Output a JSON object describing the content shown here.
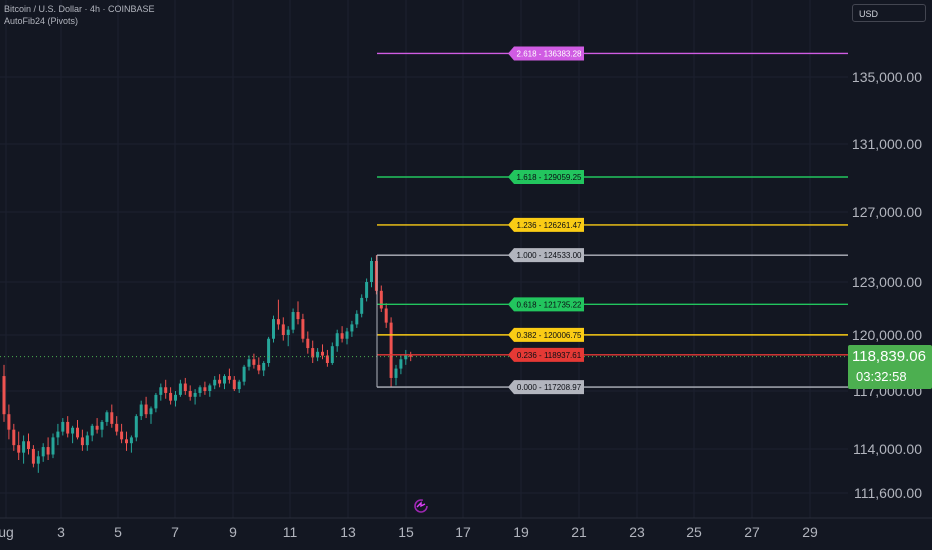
{
  "header": {
    "symbol_line": "Bitcoin / U.S. Dollar · 4h · COINBASE",
    "indicator_line": "AutoFib24 (Pivots)"
  },
  "currency_selector": "USD",
  "current_price": {
    "price": "118,839.06",
    "countdown": "03:32:58",
    "color": "#4caf50"
  },
  "icons": {
    "reset": "reset-chart-icon"
  },
  "chart_data": {
    "type": "candlestick",
    "x_ticks": [
      "ug",
      "3",
      "5",
      "7",
      "9",
      "11",
      "13",
      "15",
      "17",
      "19",
      "21",
      "23",
      "25",
      "27",
      "29"
    ],
    "y_ticks": [
      "135,000.00",
      "131,000.00",
      "127,000.00",
      "123,000.00",
      "120,000.00",
      "117,000.00",
      "114,000.00",
      "111,600.00"
    ],
    "colors": {
      "up": "#26a69a",
      "down": "#ef5350",
      "background": "#131722"
    },
    "fib_levels": [
      {
        "ratio": "2.618",
        "value": 136383.28,
        "label": "2.618 - 136383.28",
        "color": "#d05ce3",
        "text_color": "#ffffff"
      },
      {
        "ratio": "1.618",
        "value": 129059.25,
        "label": "1.618 - 129059.25",
        "color": "#22c55e",
        "text_color": "#0b0e14"
      },
      {
        "ratio": "1.236",
        "value": 126261.47,
        "label": "1.236 - 126261.47",
        "color": "#facc15",
        "text_color": "#0b0e14"
      },
      {
        "ratio": "1.000",
        "value": 124533.0,
        "label": "1.000 - 124533.00",
        "color": "#b2b5be",
        "text_color": "#0b0e14"
      },
      {
        "ratio": "0.618",
        "value": 121735.22,
        "label": "0.618 - 121735.22",
        "color": "#22c55e",
        "text_color": "#0b0e14"
      },
      {
        "ratio": "0.382",
        "value": 120006.75,
        "label": "0.382 - 120006.75",
        "color": "#facc15",
        "text_color": "#0b0e14"
      },
      {
        "ratio": "0.236",
        "value": 118937.61,
        "label": "0.236 - 118937.61",
        "color": "#e53935",
        "text_color": "#0b0e14"
      },
      {
        "ratio": "0.000",
        "value": 117208.97,
        "label": "0.000 - 117208.97",
        "color": "#b2b5be",
        "text_color": "#0b0e14"
      }
    ],
    "candles": [
      [
        117800,
        118400,
        115400,
        115800
      ],
      [
        115800,
        116300,
        114500,
        115000
      ],
      [
        115000,
        115300,
        113900,
        114200
      ],
      [
        114200,
        114900,
        113400,
        113800
      ],
      [
        113800,
        114700,
        113200,
        114400
      ],
      [
        114400,
        114800,
        113700,
        114000
      ],
      [
        114000,
        114200,
        113000,
        113200
      ],
      [
        113200,
        113900,
        112700,
        113600
      ],
      [
        113600,
        114300,
        113300,
        114100
      ],
      [
        114100,
        114600,
        113400,
        113700
      ],
      [
        113700,
        114800,
        113500,
        114600
      ],
      [
        114600,
        115300,
        114200,
        114900
      ],
      [
        114900,
        115600,
        114700,
        115400
      ],
      [
        115400,
        115700,
        114600,
        114800
      ],
      [
        114800,
        115200,
        114300,
        115100
      ],
      [
        115100,
        115500,
        114500,
        114600
      ],
      [
        114600,
        115000,
        113900,
        114200
      ],
      [
        114200,
        114900,
        113900,
        114700
      ],
      [
        114700,
        115300,
        114400,
        115200
      ],
      [
        115200,
        115600,
        114800,
        115000
      ],
      [
        115000,
        115500,
        114600,
        115400
      ],
      [
        115400,
        116000,
        115200,
        115900
      ],
      [
        115900,
        116300,
        115100,
        115300
      ],
      [
        115300,
        115700,
        114700,
        114900
      ],
      [
        114900,
        115300,
        114300,
        114500
      ],
      [
        114500,
        114900,
        113900,
        114300
      ],
      [
        114300,
        114700,
        113800,
        114600
      ],
      [
        114600,
        115800,
        114400,
        115700
      ],
      [
        115700,
        116500,
        115500,
        116300
      ],
      [
        116300,
        116700,
        115600,
        115800
      ],
      [
        115800,
        116200,
        115300,
        116100
      ],
      [
        116100,
        116900,
        115900,
        116800
      ],
      [
        116800,
        117400,
        116500,
        117200
      ],
      [
        117200,
        117600,
        116600,
        116900
      ],
      [
        116900,
        117200,
        116300,
        116500
      ],
      [
        116500,
        117000,
        116200,
        116800
      ],
      [
        116800,
        117600,
        116700,
        117400
      ],
      [
        117400,
        117700,
        116800,
        117000
      ],
      [
        117000,
        117300,
        116500,
        116700
      ],
      [
        116700,
        117100,
        116300,
        116900
      ],
      [
        116900,
        117300,
        116700,
        117200
      ],
      [
        117200,
        117500,
        116800,
        117000
      ],
      [
        117000,
        117400,
        116700,
        117300
      ],
      [
        117300,
        117800,
        117100,
        117600
      ],
      [
        117600,
        117900,
        117200,
        117400
      ],
      [
        117400,
        117900,
        117100,
        117800
      ],
      [
        117800,
        118200,
        117400,
        117600
      ],
      [
        117600,
        117800,
        117000,
        117100
      ],
      [
        117100,
        117600,
        116900,
        117500
      ],
      [
        117500,
        118400,
        117300,
        118300
      ],
      [
        118300,
        118900,
        118100,
        118700
      ],
      [
        118700,
        119000,
        118200,
        118400
      ],
      [
        118400,
        118800,
        117900,
        118100
      ],
      [
        118100,
        118600,
        117800,
        118500
      ],
      [
        118500,
        119900,
        118300,
        119800
      ],
      [
        119800,
        121100,
        119600,
        120900
      ],
      [
        120900,
        122000,
        120300,
        120600
      ],
      [
        120600,
        121000,
        119700,
        120000
      ],
      [
        120000,
        120500,
        119400,
        120300
      ],
      [
        120300,
        121500,
        120100,
        121300
      ],
      [
        121300,
        121900,
        120600,
        120900
      ],
      [
        120900,
        121200,
        119600,
        119800
      ],
      [
        119800,
        120200,
        119000,
        119300
      ],
      [
        119300,
        119700,
        118500,
        118800
      ],
      [
        118800,
        119300,
        118600,
        119100
      ],
      [
        119100,
        119500,
        118700,
        118900
      ],
      [
        118900,
        119200,
        118300,
        118500
      ],
      [
        118500,
        119600,
        118400,
        119400
      ],
      [
        119400,
        120300,
        119100,
        120100
      ],
      [
        120100,
        120500,
        119600,
        119800
      ],
      [
        119800,
        120400,
        119500,
        120200
      ],
      [
        120200,
        120800,
        119900,
        120600
      ],
      [
        120600,
        121400,
        120400,
        121200
      ],
      [
        121200,
        122300,
        121000,
        122100
      ],
      [
        122100,
        123200,
        121900,
        123000
      ],
      [
        123000,
        124400,
        122700,
        124200
      ],
      [
        124200,
        124533,
        122300,
        122500
      ],
      [
        122500,
        122800,
        121300,
        121500
      ],
      [
        121500,
        121800,
        120400,
        120700
      ],
      [
        120700,
        121000,
        117208,
        117700
      ],
      [
        117700,
        118400,
        117300,
        118200
      ],
      [
        118200,
        118900,
        117900,
        118700
      ],
      [
        118700,
        119200,
        118400,
        118900
      ],
      [
        118900,
        119100,
        118600,
        118839
      ]
    ]
  }
}
